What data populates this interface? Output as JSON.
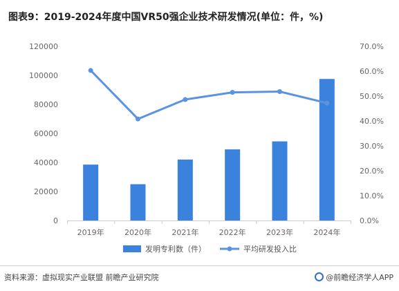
{
  "title": "图表9：2019-2024年度中国VR50强企业技术研发情况(单位：件，%)",
  "source": "资料来源：虚拟现实产业联盟 前瞻产业研究院",
  "brand": "@前瞻经济学人APP",
  "chart_data": {
    "type": "bar",
    "categories": [
      "2019年",
      "2020年",
      "2021年",
      "2022年",
      "2023年",
      "2024年"
    ],
    "series": [
      {
        "name": "发明专利数（件）",
        "type": "bar",
        "axis": "left",
        "values": [
          38500,
          25000,
          42000,
          49000,
          54500,
          97500
        ]
      },
      {
        "name": "平均研发投入比",
        "type": "line",
        "axis": "right",
        "values": [
          60.3,
          40.8,
          48.6,
          51.5,
          51.8,
          47.2
        ]
      }
    ],
    "y_left": {
      "ticks": [
        "0",
        "20000",
        "40000",
        "60000",
        "80000",
        "100000",
        "120000"
      ],
      "ylim": [
        0,
        120000
      ]
    },
    "y_right": {
      "ticks": [
        "0.0%",
        "10.0%",
        "20.0%",
        "30.0%",
        "40.0%",
        "50.0%",
        "60.0%",
        "70.0%"
      ],
      "ylim": [
        0,
        70
      ]
    },
    "grid": false,
    "legend_position": "bottom",
    "colors": {
      "bar": "#3b82dc",
      "line": "#5b93e0"
    }
  }
}
